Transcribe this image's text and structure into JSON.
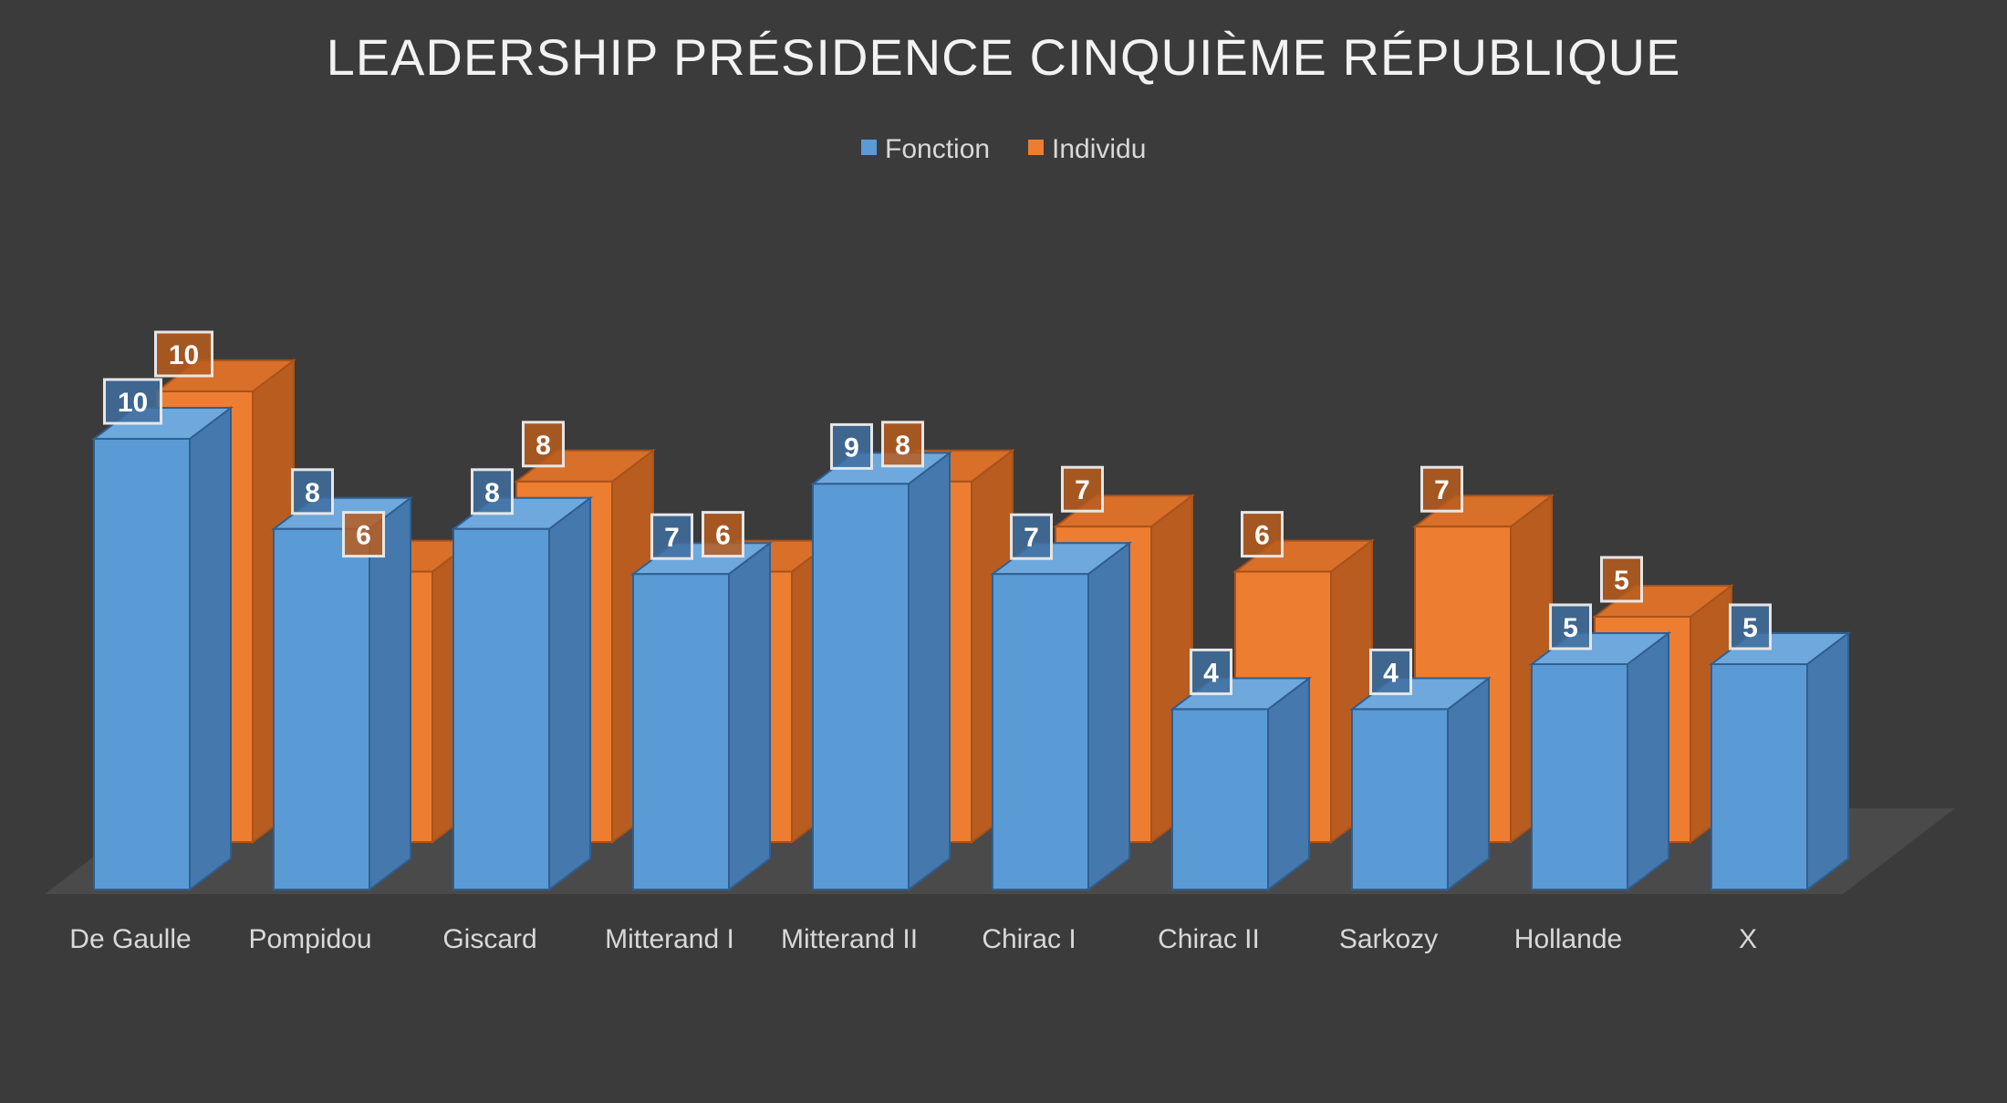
{
  "chart_data": {
    "type": "bar",
    "style": "3d-clustered-column",
    "title": "LEADERSHIP PRÉSIDENCE CINQUIÈME RÉPUBLIQUE",
    "xlabel": "",
    "ylabel": "",
    "ylim": [
      0,
      10
    ],
    "grid": false,
    "legend_position": "top",
    "categories": [
      "De Gaulle",
      "Pompidou",
      "Giscard",
      "Mitterand I",
      "Mitterand II",
      "Chirac I",
      "Chirac II",
      "Sarkozy",
      "Hollande",
      "X"
    ],
    "series": [
      {
        "name": "Fonction",
        "color": "#5b9bd5",
        "values": [
          10,
          8,
          8,
          7,
          9,
          7,
          4,
          4,
          5,
          5
        ]
      },
      {
        "name": "Individu",
        "color": "#ed7d31",
        "values": [
          10,
          6,
          8,
          6,
          8,
          7,
          6,
          7,
          5,
          null
        ]
      }
    ],
    "data_labels": true
  }
}
